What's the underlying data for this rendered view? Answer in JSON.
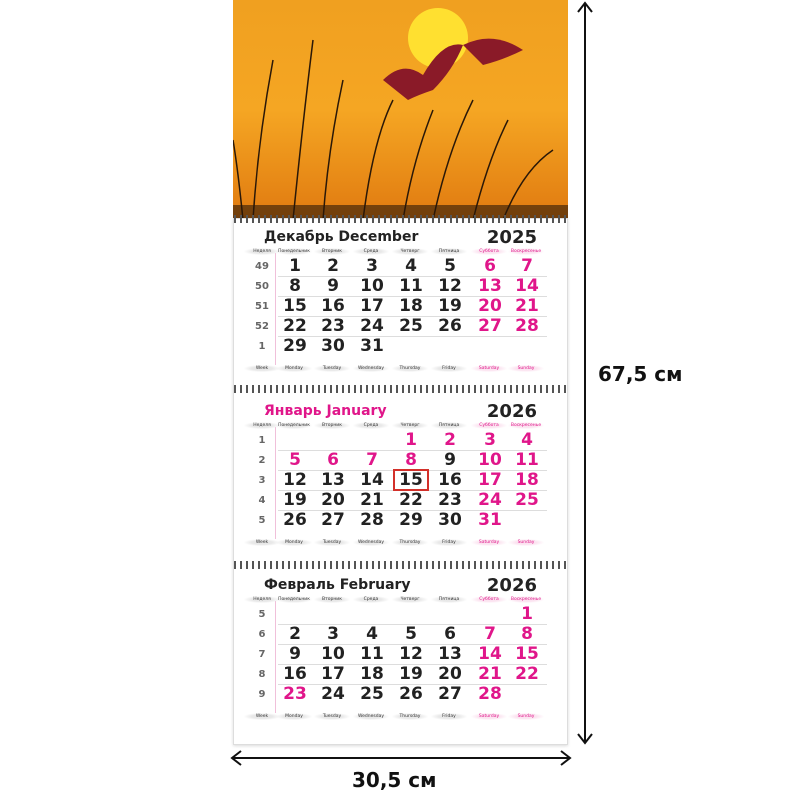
{
  "weekday_labels_ru": [
    "Неделя",
    "Понедельник",
    "Вторник",
    "Среда",
    "Четверг",
    "Пятница",
    "Суббота",
    "Воскресенье"
  ],
  "weekday_labels_en": [
    "Week",
    "Monday",
    "Tuesday",
    "Wednesday",
    "Thursday",
    "Friday",
    "Saturday",
    "Sunday"
  ],
  "colors": {
    "holiday": "#e0168a",
    "text": "#222222",
    "today_marker": "#d3302a"
  },
  "months": [
    {
      "name": "Декабрь December",
      "name_pink": false,
      "year": "2025",
      "rows": [
        {
          "week": "49",
          "days": [
            "1",
            "2",
            "3",
            "4",
            "5",
            "6",
            "7"
          ],
          "pink": [
            5,
            6
          ]
        },
        {
          "week": "50",
          "days": [
            "8",
            "9",
            "10",
            "11",
            "12",
            "13",
            "14"
          ],
          "pink": [
            5,
            6
          ]
        },
        {
          "week": "51",
          "days": [
            "15",
            "16",
            "17",
            "18",
            "19",
            "20",
            "21"
          ],
          "pink": [
            5,
            6
          ]
        },
        {
          "week": "52",
          "days": [
            "22",
            "23",
            "24",
            "25",
            "26",
            "27",
            "28"
          ],
          "pink": [
            5,
            6
          ]
        },
        {
          "week": "1",
          "days": [
            "29",
            "30",
            "31",
            "",
            "",
            "",
            ""
          ],
          "pink": []
        }
      ]
    },
    {
      "name": "Январь January",
      "name_pink": true,
      "year": "2026",
      "today": [
        2,
        3
      ],
      "rows": [
        {
          "week": "1",
          "days": [
            "",
            "",
            "",
            "1",
            "2",
            "3",
            "4"
          ],
          "pink": [
            3,
            4,
            5,
            6
          ]
        },
        {
          "week": "2",
          "days": [
            "5",
            "6",
            "7",
            "8",
            "9",
            "10",
            "11"
          ],
          "pink": [
            0,
            1,
            2,
            3,
            5,
            6
          ]
        },
        {
          "week": "3",
          "days": [
            "12",
            "13",
            "14",
            "15",
            "16",
            "17",
            "18"
          ],
          "pink": [
            5,
            6
          ]
        },
        {
          "week": "4",
          "days": [
            "19",
            "20",
            "21",
            "22",
            "23",
            "24",
            "25"
          ],
          "pink": [
            5,
            6
          ]
        },
        {
          "week": "5",
          "days": [
            "26",
            "27",
            "28",
            "29",
            "30",
            "31",
            ""
          ],
          "pink": [
            5
          ]
        }
      ]
    },
    {
      "name": "Февраль February",
      "name_pink": false,
      "year": "2026",
      "rows": [
        {
          "week": "5",
          "days": [
            "",
            "",
            "",
            "",
            "",
            "",
            "1"
          ],
          "pink": [
            6
          ]
        },
        {
          "week": "6",
          "days": [
            "2",
            "3",
            "4",
            "5",
            "6",
            "7",
            "8"
          ],
          "pink": [
            5,
            6
          ]
        },
        {
          "week": "7",
          "days": [
            "9",
            "10",
            "11",
            "12",
            "13",
            "14",
            "15"
          ],
          "pink": [
            5,
            6
          ]
        },
        {
          "week": "8",
          "days": [
            "16",
            "17",
            "18",
            "19",
            "20",
            "21",
            "22"
          ],
          "pink": [
            5,
            6
          ]
        },
        {
          "week": "9",
          "days": [
            "23",
            "24",
            "25",
            "26",
            "27",
            "28",
            ""
          ],
          "pink": [
            0,
            5
          ]
        }
      ]
    }
  ],
  "dimensions": {
    "height": "67,5 см",
    "width": "30,5 см"
  }
}
